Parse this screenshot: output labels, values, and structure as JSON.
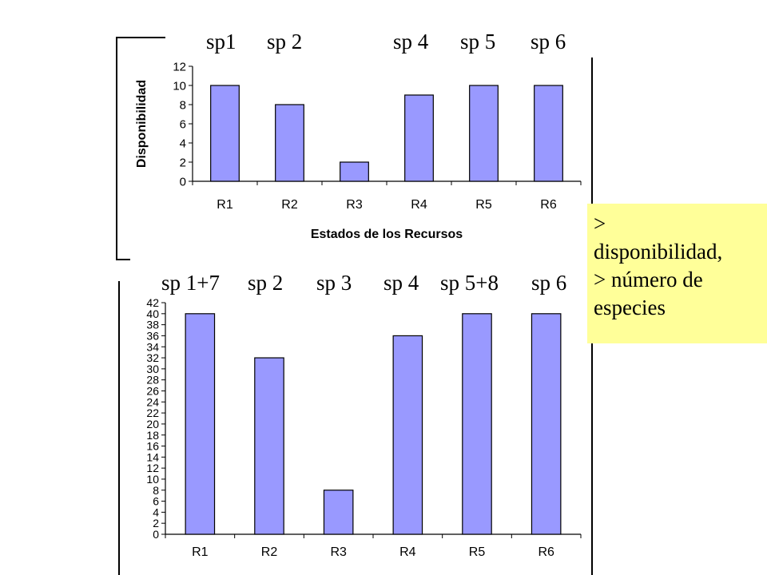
{
  "chart_data": [
    {
      "type": "bar",
      "categories": [
        "R1",
        "R2",
        "R3",
        "R4",
        "R5",
        "R6"
      ],
      "values": [
        10,
        8,
        2,
        9,
        10,
        10
      ],
      "xlabel": "Estados de los Recursos",
      "ylabel": "Disponibilidad",
      "ylim": [
        0,
        12
      ],
      "yticks": [
        0,
        2,
        4,
        6,
        8,
        10,
        12
      ],
      "bar_color": "#9999ff",
      "grid": false,
      "species_labels": [
        "sp1",
        "sp 2",
        "sp 4",
        "sp 5",
        "sp 6"
      ]
    },
    {
      "type": "bar",
      "categories": [
        "R1",
        "R2",
        "R3",
        "R4",
        "R5",
        "R6"
      ],
      "values": [
        40,
        32,
        8,
        36,
        40,
        40
      ],
      "xlabel": "",
      "ylabel": "",
      "ylim": [
        0,
        42
      ],
      "yticks": [
        0,
        2,
        4,
        6,
        8,
        10,
        12,
        14,
        16,
        18,
        20,
        22,
        24,
        26,
        28,
        30,
        32,
        34,
        36,
        38,
        40,
        42
      ],
      "bar_color": "#9999ff",
      "grid": false,
      "species_labels": [
        "sp 1+7",
        "sp 2",
        "sp 3",
        "sp 4",
        "sp 5+8",
        "sp 6"
      ]
    }
  ],
  "note": {
    "lines": [
      "> ",
      "disponibilidad,",
      "> número de",
      "especies"
    ],
    "background": "#ffff99"
  }
}
